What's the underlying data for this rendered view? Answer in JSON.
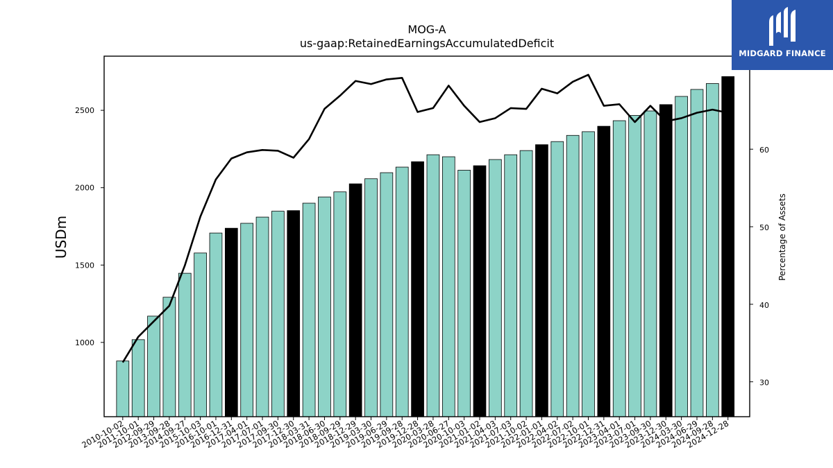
{
  "logo": {
    "text": "MIDGARD FINANCE",
    "icon": "midgard-m-icon",
    "bg_color": "#2b57ad"
  },
  "chart_data": {
    "type": "bar",
    "title": "MOG-A",
    "subtitle": "us-gaap:RetainedEarningsAccumulatedDeficit",
    "ylabel": "USDm",
    "y2label": "Percentage of Assets",
    "ylim": [
      520,
      2850
    ],
    "y2lim": [
      25.5,
      72
    ],
    "yticks": [
      1000,
      1500,
      2000,
      2500
    ],
    "y2ticks": [
      30,
      40,
      50,
      60
    ],
    "grid": false,
    "colors": {
      "quarterly": "#8dd3c7",
      "annual": "#000000",
      "line": "#000000"
    },
    "categories": [
      "2010-10-02",
      "2011-10-01",
      "2012-09-29",
      "2013-09-28",
      "2014-09-27",
      "2015-10-03",
      "2016-10-01",
      "2016-12-31",
      "2017-04-01",
      "2017-07-01",
      "2017-09-30",
      "2017-12-30",
      "2018-03-31",
      "2018-06-30",
      "2018-09-29",
      "2018-12-29",
      "2019-03-30",
      "2019-06-29",
      "2019-09-28",
      "2019-12-28",
      "2020-03-28",
      "2020-06-27",
      "2020-10-03",
      "2021-01-02",
      "2021-04-03",
      "2021-07-03",
      "2021-10-02",
      "2022-01-01",
      "2022-04-02",
      "2022-07-02",
      "2022-10-01",
      "2022-12-31",
      "2023-04-01",
      "2023-07-01",
      "2023-09-30",
      "2023-12-30",
      "2024-03-30",
      "2024-06-29",
      "2024-09-28",
      "2024-12-28"
    ],
    "series": [
      {
        "type": "bar",
        "values": [
          880,
          1018,
          1170,
          1292,
          1447,
          1578,
          1707,
          1738,
          1770,
          1810,
          1848,
          1852,
          1900,
          1940,
          1973,
          2025,
          2058,
          2097,
          2133,
          2168,
          2213,
          2200,
          2113,
          2142,
          2182,
          2213,
          2240,
          2278,
          2298,
          2338,
          2362,
          2397,
          2433,
          2467,
          2496,
          2537,
          2590,
          2635,
          2673,
          2718
        ],
        "annual_flags": [
          false,
          false,
          false,
          false,
          false,
          false,
          false,
          true,
          false,
          false,
          false,
          true,
          false,
          false,
          false,
          true,
          false,
          false,
          false,
          true,
          false,
          false,
          false,
          true,
          false,
          false,
          false,
          true,
          false,
          false,
          false,
          true,
          false,
          false,
          false,
          true,
          false,
          false,
          false,
          true
        ]
      },
      {
        "type": "line",
        "axis": "right",
        "values": [
          32.5,
          35.8,
          37.8,
          39.8,
          45.0,
          51.3,
          56.1,
          58.8,
          59.6,
          59.9,
          59.8,
          58.9,
          61.3,
          65.2,
          66.9,
          68.8,
          68.4,
          69.0,
          69.2,
          64.8,
          65.3,
          68.2,
          65.6,
          63.5,
          64.0,
          65.3,
          65.2,
          67.8,
          67.2,
          68.7,
          69.6,
          65.6,
          65.8,
          63.5,
          65.6,
          63.6,
          64.0,
          64.7,
          65.1,
          64.7
        ]
      }
    ]
  }
}
